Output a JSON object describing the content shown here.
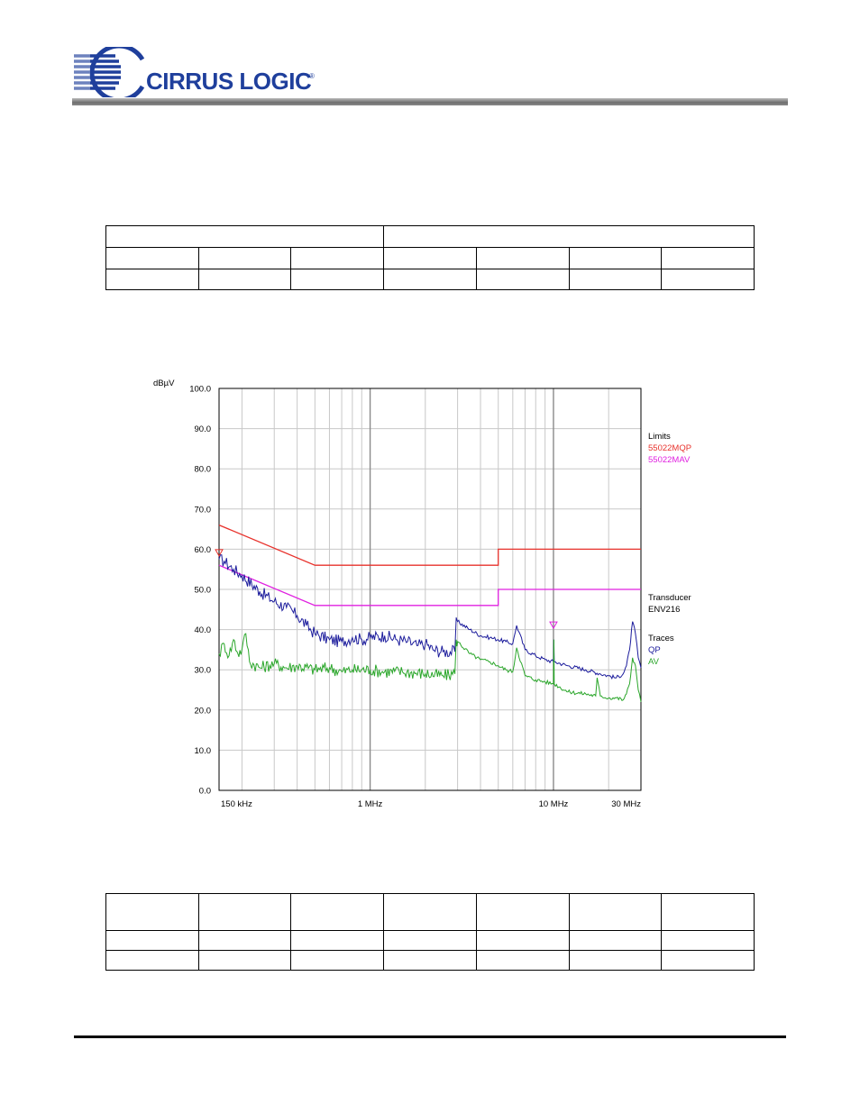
{
  "header": {
    "logo_text": "CIRRUS LOGIC",
    "logo_mark": "®",
    "brand_color": "#1f3f9c"
  },
  "table_top": {
    "rows": 3,
    "cols": 7
  },
  "table_bottom": {
    "rows": 3,
    "cols": 7
  },
  "chart_data": {
    "type": "line",
    "title": "",
    "ylabel": "dBµV",
    "xlabel": "",
    "x_scale": "log",
    "xlim_mhz": [
      0.15,
      30
    ],
    "ylim": [
      0,
      100
    ],
    "y_ticks": [
      "100.0",
      "90.0",
      "80.0",
      "70.0",
      "60.0",
      "50.0",
      "40.0",
      "30.0",
      "20.0",
      "10.0",
      "0.0"
    ],
    "x_tick_labels": [
      {
        "value": 0.15,
        "label": "150 kHz"
      },
      {
        "value": 1,
        "label": "1 MHz"
      },
      {
        "value": 10,
        "label": "10 MHz"
      },
      {
        "value": 30,
        "label": "30 MHz"
      }
    ],
    "grid": true,
    "legend_placement": "right",
    "legend": {
      "limits_title": "Limits",
      "transducer_title": "Transducer",
      "transducer_name": "ENV216",
      "traces_title": "Traces"
    },
    "limits": [
      {
        "name": "55022MQP",
        "color": "#e8322c",
        "x": [
          0.15,
          0.5,
          0.5,
          5,
          5,
          30
        ],
        "y": [
          66,
          56,
          56,
          56,
          60,
          60
        ]
      },
      {
        "name": "55022MAV",
        "color": "#e020e0",
        "x": [
          0.15,
          0.5,
          0.5,
          5,
          5,
          30
        ],
        "y": [
          56,
          46,
          46,
          46,
          50,
          50
        ]
      }
    ],
    "series": [
      {
        "name": "QP",
        "color": "#1c1c9c",
        "x": [
          0.15,
          0.16,
          0.18,
          0.2,
          0.25,
          0.3,
          0.35,
          0.4,
          0.45,
          0.5,
          0.6,
          0.7,
          0.8,
          0.9,
          1.0,
          1.2,
          1.4,
          1.6,
          1.8,
          2.0,
          2.2,
          2.5,
          2.9,
          2.95,
          3.0,
          3.5,
          4.0,
          4.5,
          5.0,
          5.5,
          6.0,
          6.3,
          7.0,
          8.0,
          9.0,
          10.0,
          10.05,
          10.1,
          12.0,
          15.0,
          18.0,
          20.0,
          22.0,
          24.0,
          25.0,
          26.0,
          27.0,
          28.0,
          29.0,
          30.0
        ],
        "y": [
          57.5,
          57,
          55,
          53.5,
          49.5,
          47,
          45.5,
          43.5,
          41,
          39,
          37.5,
          37,
          38,
          37.5,
          38,
          38.5,
          37.5,
          37,
          36,
          36.5,
          35,
          34.5,
          34.5,
          43,
          42,
          40,
          38.5,
          38,
          37.5,
          37,
          36.5,
          41,
          35,
          33.5,
          32.5,
          32,
          37.5,
          32,
          31,
          30,
          29,
          28.5,
          28,
          29,
          31,
          35,
          42,
          39,
          33,
          30.5
        ]
      },
      {
        "name": "AV",
        "color": "#2aa62a",
        "x": [
          0.15,
          0.16,
          0.17,
          0.18,
          0.19,
          0.2,
          0.21,
          0.22,
          0.25,
          0.3,
          0.35,
          0.4,
          0.5,
          0.6,
          0.7,
          0.8,
          1.0,
          1.2,
          1.5,
          2.0,
          2.5,
          2.9,
          2.95,
          3.0,
          3.5,
          4.0,
          4.5,
          5.0,
          5.5,
          6.0,
          6.3,
          7.0,
          8.0,
          9.0,
          10.0,
          10.05,
          10.1,
          12.0,
          15.0,
          17.0,
          17.3,
          18.0,
          20.0,
          22.0,
          24.0,
          25.0,
          26.0,
          27.0,
          28.0,
          29.0,
          30.0
        ],
        "y": [
          34,
          36.5,
          33.5,
          37.5,
          34,
          35,
          39,
          32,
          30.5,
          31.5,
          30.5,
          31,
          30,
          30.5,
          29.5,
          30,
          30,
          29.5,
          29.5,
          29,
          28.5,
          29,
          37.5,
          37,
          34,
          32.5,
          32,
          31,
          30,
          29.5,
          35.5,
          28.5,
          27.5,
          27,
          26.5,
          37.5,
          26.5,
          24.5,
          24,
          23.5,
          28,
          23.5,
          23,
          23,
          22.5,
          24,
          26.5,
          33,
          31,
          25,
          22
        ]
      }
    ],
    "markers": [
      {
        "series": "QP",
        "x": 0.15,
        "y": 59,
        "color": "#e8322c"
      },
      {
        "series": "AV",
        "x": 10,
        "y": 41,
        "color": "#e020e0"
      }
    ]
  }
}
